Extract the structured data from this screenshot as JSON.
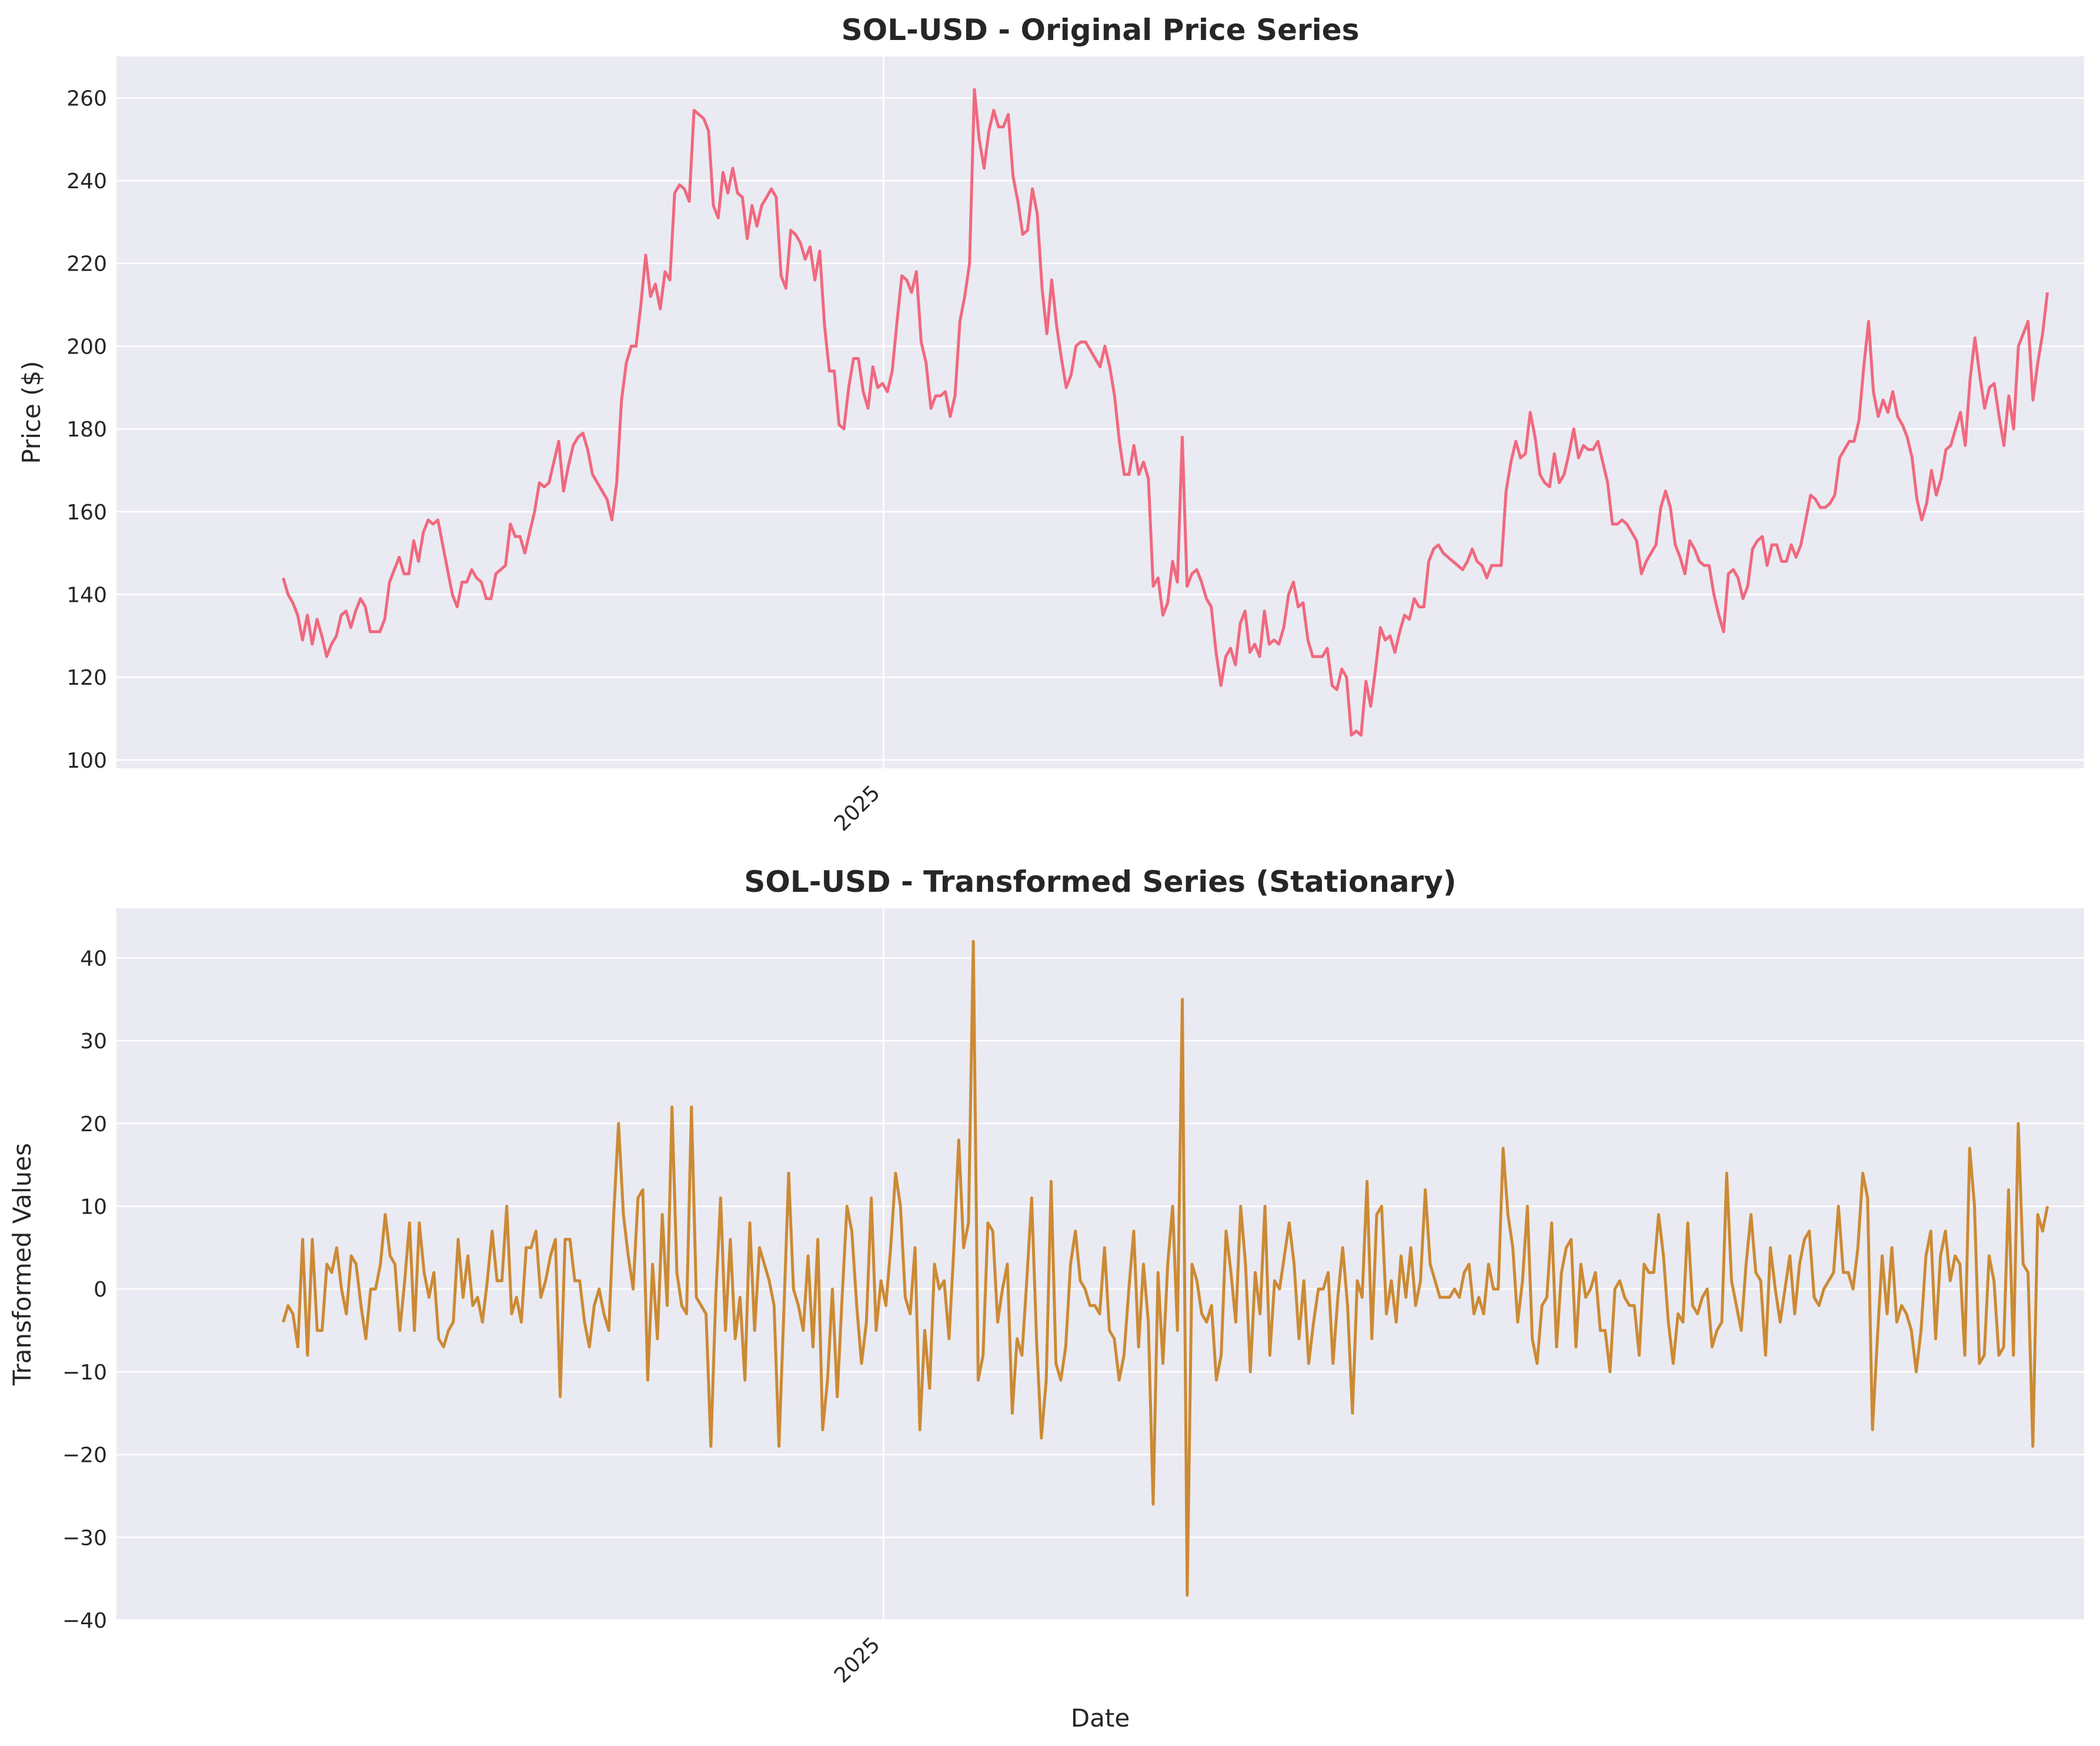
{
  "chart_data": [
    {
      "type": "line",
      "title": "SOL-USD - Original Price Series",
      "xlabel": "",
      "ylabel": "Price ($)",
      "ylim": [
        98,
        270
      ],
      "yticks": [
        100,
        120,
        140,
        160,
        180,
        200,
        220,
        240,
        260
      ],
      "xlim": [
        -45,
        545
      ],
      "xticks": [
        {
          "label": "2025",
          "x": 185
        }
      ],
      "grid": true,
      "color": "#f0697f",
      "series": [
        {
          "values": [
            144,
            140,
            138,
            135,
            129,
            135,
            128,
            134,
            130,
            125,
            128,
            130,
            135,
            136,
            132,
            136,
            139,
            137,
            131,
            131,
            131,
            134,
            143,
            146,
            149,
            145,
            145,
            153,
            148,
            155,
            158,
            157,
            158,
            152,
            146,
            140,
            137,
            143,
            143,
            146,
            144,
            143,
            139,
            139,
            145,
            146,
            147,
            157,
            154,
            154,
            150,
            155,
            160,
            167,
            166,
            167,
            172,
            177,
            165,
            171,
            176,
            178,
            179,
            175,
            169,
            167,
            165,
            163,
            158,
            167,
            187,
            196,
            200,
            200,
            210,
            222,
            212,
            215,
            209,
            218,
            216,
            237,
            239,
            238,
            235,
            257,
            256,
            255,
            252,
            234,
            231,
            242,
            237,
            243,
            237,
            236,
            226,
            234,
            229,
            234,
            236,
            238,
            236,
            217,
            214,
            228,
            227,
            225,
            221,
            224,
            216,
            223,
            205,
            194,
            194,
            181,
            180,
            190,
            197,
            197,
            189,
            185,
            195,
            190,
            191,
            189,
            194,
            206,
            217,
            216,
            213,
            218,
            201,
            196,
            185,
            188,
            188,
            189,
            183,
            188,
            206,
            212,
            220,
            262,
            250,
            243,
            252,
            257,
            253,
            253,
            256,
            241,
            235,
            227,
            228,
            238,
            232,
            214,
            203,
            216,
            205,
            197,
            190,
            193,
            200,
            201,
            201,
            199,
            197,
            195,
            200,
            195,
            188,
            177,
            169,
            169,
            176,
            169,
            172,
            168,
            142,
            144,
            135,
            138,
            148,
            143,
            178,
            142,
            145,
            146,
            143,
            139,
            137,
            126,
            118,
            125,
            127,
            123,
            133,
            136,
            126,
            128,
            125,
            136,
            128,
            129,
            128,
            132,
            140,
            143,
            137,
            138,
            129,
            125,
            125,
            125,
            127,
            118,
            117,
            122,
            120,
            106,
            107,
            106,
            119,
            113,
            122,
            132,
            129,
            130,
            126,
            131,
            135,
            134,
            139,
            137,
            137,
            148,
            151,
            152,
            150,
            149,
            148,
            147,
            146,
            148,
            151,
            148,
            147,
            144,
            147,
            147,
            147,
            165,
            172,
            177,
            173,
            174,
            184,
            178,
            169,
            167,
            166,
            174,
            167,
            169,
            174,
            180,
            173,
            176,
            175,
            175,
            177,
            172,
            167,
            157,
            157,
            158,
            157,
            155,
            153,
            145,
            148,
            150,
            152,
            161,
            165,
            161,
            152,
            149,
            145,
            153,
            151,
            148,
            147,
            147,
            140,
            135,
            131,
            145,
            146,
            144,
            139,
            142,
            151,
            153,
            154,
            147,
            152,
            152,
            148,
            148,
            152,
            149,
            152,
            158,
            164,
            163,
            161,
            161,
            162,
            164,
            173,
            175,
            177,
            177,
            182,
            195,
            206,
            189,
            183,
            187,
            184,
            189,
            183,
            181,
            178,
            173,
            163,
            158,
            162,
            170,
            164,
            168,
            175,
            176,
            180,
            184,
            176,
            192,
            202,
            193,
            185,
            190,
            191,
            183,
            176,
            188,
            180,
            200,
            203,
            206,
            187,
            196,
            203,
            213
          ]
        }
      ]
    },
    {
      "type": "line",
      "title": "SOL-USD - Transformed Series (Stationary)",
      "xlabel": "Date",
      "ylabel": "Transformed Values",
      "ylim": [
        -40,
        46
      ],
      "yticks": [
        -40,
        -30,
        -20,
        -10,
        0,
        10,
        20,
        30,
        40
      ],
      "xlim": [
        -45,
        545
      ],
      "xticks": [
        {
          "label": "2025",
          "x": 185
        }
      ],
      "grid": true,
      "color": "#cc8a34",
      "series": [
        {
          "values": [
            -4,
            -2,
            -3,
            -7,
            6,
            -8,
            6,
            -5,
            -5,
            3,
            2,
            5,
            0,
            -3,
            4,
            3,
            -2,
            -6,
            0,
            0,
            3,
            9,
            4,
            3,
            -5,
            1,
            8,
            -5,
            8,
            2,
            -1,
            2,
            -6,
            -7,
            -5,
            -4,
            6,
            -1,
            4,
            -2,
            -1,
            -4,
            1,
            7,
            1,
            1,
            10,
            -3,
            -1,
            -4,
            5,
            5,
            7,
            -1,
            1,
            4,
            6,
            -13,
            6,
            6,
            1,
            1,
            -4,
            -7,
            -2,
            0,
            -3,
            -5,
            9,
            20,
            9,
            4,
            0,
            11,
            12,
            -11,
            3,
            -6,
            9,
            -2,
            22,
            2,
            -2,
            -3,
            22,
            -1,
            -2,
            -3,
            -19,
            -1,
            11,
            -5,
            6,
            -6,
            -1,
            -11,
            8,
            -5,
            5,
            3,
            1,
            -2,
            -19,
            -3,
            14,
            0,
            -2,
            -5,
            4,
            -7,
            6,
            -17,
            -11,
            0,
            -13,
            -1,
            10,
            7,
            -2,
            -9,
            -4,
            11,
            -5,
            1,
            -2,
            5,
            14,
            10,
            -1,
            -3,
            5,
            -17,
            -5,
            -12,
            3,
            0,
            1,
            -6,
            5,
            18,
            5,
            8,
            42,
            -11,
            -8,
            8,
            7,
            -4,
            0,
            3,
            -15,
            -6,
            -8,
            1,
            11,
            -6,
            -18,
            -11,
            13,
            -9,
            -11,
            -7,
            3,
            7,
            1,
            0,
            -2,
            -2,
            -3,
            5,
            -5,
            -6,
            -11,
            -8,
            0,
            7,
            -7,
            3,
            -4,
            -26,
            2,
            -9,
            3,
            10,
            -5,
            35,
            -37,
            3,
            1,
            -3,
            -4,
            -2,
            -11,
            -8,
            7,
            2,
            -4,
            10,
            3,
            -10,
            2,
            -3,
            10,
            -8,
            1,
            0,
            4,
            8,
            3,
            -6,
            1,
            -9,
            -4,
            0,
            0,
            2,
            -9,
            -1,
            5,
            -2,
            -15,
            1,
            -1,
            13,
            -6,
            9,
            10,
            -3,
            1,
            -4,
            4,
            -1,
            5,
            -2,
            1,
            12,
            3,
            1,
            -1,
            -1,
            -1,
            0,
            -1,
            2,
            3,
            -3,
            -1,
            -3,
            3,
            0,
            0,
            17,
            9,
            5,
            -4,
            1,
            10,
            -6,
            -9,
            -2,
            -1,
            8,
            -7,
            2,
            5,
            6,
            -7,
            3,
            -1,
            0,
            2,
            -5,
            -5,
            -10,
            0,
            1,
            -1,
            -2,
            -2,
            -8,
            3,
            2,
            2,
            9,
            4,
            -4,
            -9,
            -3,
            -4,
            8,
            -2,
            -3,
            -1,
            0,
            -7,
            -5,
            -4,
            14,
            1,
            -2,
            -5,
            3,
            9,
            2,
            1,
            -8,
            5,
            0,
            -4,
            0,
            4,
            -3,
            3,
            6,
            7,
            -1,
            -2,
            0,
            1,
            2,
            10,
            2,
            2,
            0,
            5,
            14,
            11,
            -17,
            -6,
            4,
            -3,
            5,
            -4,
            -2,
            -3,
            -5,
            -10,
            -5,
            4,
            7,
            -6,
            4,
            7,
            1,
            4,
            3,
            -8,
            17,
            10,
            -9,
            -8,
            4,
            1,
            -8,
            -7,
            12,
            -8,
            20,
            3,
            2,
            -19,
            9,
            7,
            10
          ]
        }
      ]
    }
  ]
}
